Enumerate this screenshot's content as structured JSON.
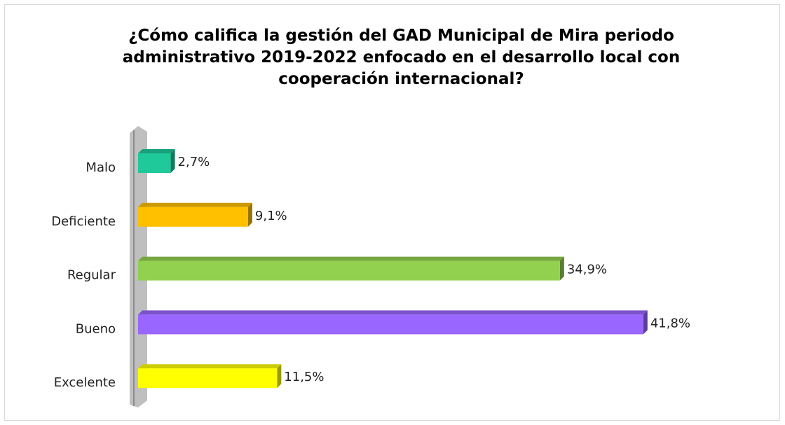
{
  "chart_data": {
    "type": "bar",
    "orientation": "horizontal",
    "title": "¿Cómo califica la gestión del GAD Municipal de Mira periodo administrativo 2019-2022 enfocado en el desarrollo local con cooperación internacional?",
    "categories": [
      "Malo",
      "Deficiente",
      "Regular",
      "Bueno",
      "Excelente"
    ],
    "values": [
      2.7,
      9.1,
      34.9,
      41.8,
      11.5
    ],
    "value_labels": [
      "2,7%",
      "9,1%",
      "34,9%",
      "41,8%",
      "11,5%"
    ],
    "colors": [
      "#1fc99a",
      "#ffc000",
      "#92d050",
      "#9966ff",
      "#ffff00"
    ],
    "xlim": [
      0,
      45
    ]
  }
}
